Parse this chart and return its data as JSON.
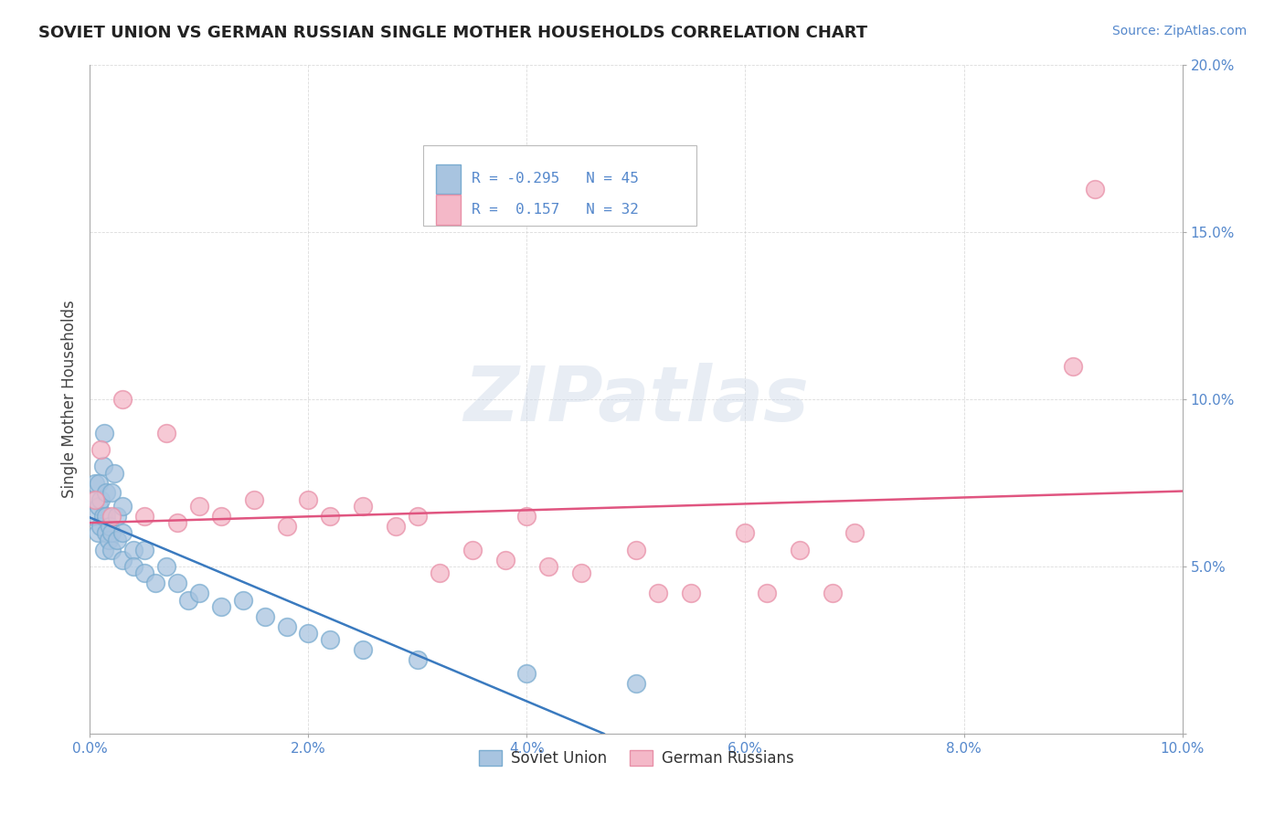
{
  "title": "SOVIET UNION VS GERMAN RUSSIAN SINGLE MOTHER HOUSEHOLDS CORRELATION CHART",
  "source": "Source: ZipAtlas.com",
  "ylabel": "Single Mother Households",
  "watermark_text": "ZIPatlas",
  "xlim": [
    0.0,
    0.1
  ],
  "ylim": [
    0.0,
    0.2
  ],
  "xticks": [
    0.0,
    0.02,
    0.04,
    0.06,
    0.08,
    0.1
  ],
  "yticks": [
    0.0,
    0.05,
    0.1,
    0.15,
    0.2
  ],
  "xtick_labels": [
    "0.0%",
    "2.0%",
    "4.0%",
    "6.0%",
    "8.0%",
    "10.0%"
  ],
  "ytick_labels": [
    "",
    "5.0%",
    "10.0%",
    "15.0%",
    "20.0%"
  ],
  "legend1_r": "-0.295",
  "legend1_n": "45",
  "legend2_r": "0.157",
  "legend2_n": "32",
  "soviet_color": "#a8c4e0",
  "soviet_edge_color": "#7aacd0",
  "german_color": "#f4b8c8",
  "german_edge_color": "#e890a8",
  "soviet_line_color": "#3a7abf",
  "german_line_color": "#e05580",
  "tick_color": "#5588cc",
  "background": "#ffffff",
  "grid_color": "#cccccc",
  "legend_label_soviet": "Soviet Union",
  "legend_label_german": "German Russians",
  "soviet_x": [
    0.0003,
    0.0005,
    0.0005,
    0.0007,
    0.0008,
    0.0008,
    0.001,
    0.001,
    0.0012,
    0.0012,
    0.0013,
    0.0013,
    0.0015,
    0.0015,
    0.0015,
    0.0017,
    0.0018,
    0.002,
    0.002,
    0.002,
    0.0022,
    0.0025,
    0.0025,
    0.003,
    0.003,
    0.003,
    0.004,
    0.004,
    0.005,
    0.005,
    0.006,
    0.007,
    0.008,
    0.009,
    0.01,
    0.012,
    0.014,
    0.016,
    0.018,
    0.02,
    0.022,
    0.025,
    0.03,
    0.04,
    0.05
  ],
  "soviet_y": [
    0.065,
    0.07,
    0.075,
    0.06,
    0.068,
    0.075,
    0.062,
    0.07,
    0.065,
    0.08,
    0.055,
    0.09,
    0.06,
    0.065,
    0.072,
    0.058,
    0.062,
    0.055,
    0.06,
    0.072,
    0.078,
    0.058,
    0.065,
    0.052,
    0.06,
    0.068,
    0.055,
    0.05,
    0.048,
    0.055,
    0.045,
    0.05,
    0.045,
    0.04,
    0.042,
    0.038,
    0.04,
    0.035,
    0.032,
    0.03,
    0.028,
    0.025,
    0.022,
    0.018,
    0.015
  ],
  "german_x": [
    0.0005,
    0.001,
    0.002,
    0.003,
    0.005,
    0.007,
    0.008,
    0.01,
    0.012,
    0.015,
    0.018,
    0.02,
    0.022,
    0.025,
    0.028,
    0.03,
    0.032,
    0.035,
    0.038,
    0.04,
    0.042,
    0.045,
    0.05,
    0.052,
    0.055,
    0.06,
    0.062,
    0.065,
    0.068,
    0.07,
    0.09,
    0.092
  ],
  "german_y": [
    0.07,
    0.085,
    0.065,
    0.1,
    0.065,
    0.09,
    0.063,
    0.068,
    0.065,
    0.07,
    0.062,
    0.07,
    0.065,
    0.068,
    0.062,
    0.065,
    0.048,
    0.055,
    0.052,
    0.065,
    0.05,
    0.048,
    0.055,
    0.042,
    0.042,
    0.06,
    0.042,
    0.055,
    0.042,
    0.06,
    0.11,
    0.163
  ]
}
